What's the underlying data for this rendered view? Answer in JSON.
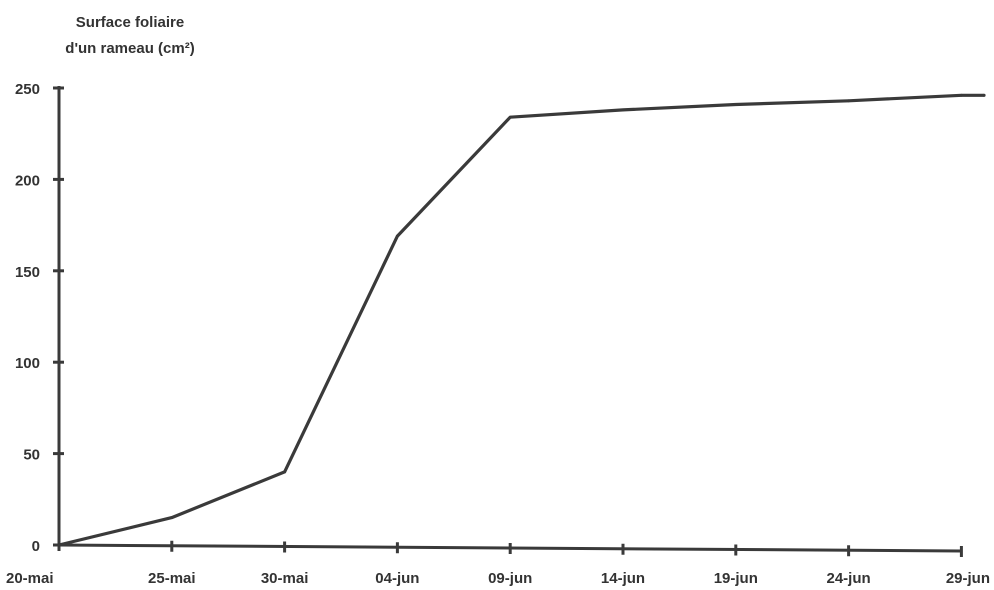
{
  "chart_data": {
    "type": "line",
    "title": "",
    "ylabel_lines": [
      "Surface foliaire",
      "d'un rameau (cm²)"
    ],
    "xlabel": "",
    "x": [
      "20-mai",
      "25-mai",
      "30-mai",
      "04-jun",
      "09-jun",
      "14-jun",
      "19-jun",
      "24-jun",
      "29-jun"
    ],
    "series": [
      {
        "x": [
          "20-mai",
          "25-mai",
          "30-mai",
          "04-jun",
          "09-jun",
          "14-jun",
          "19-jun",
          "24-jun",
          "29-jun",
          "30-jun"
        ],
        "values": [
          0,
          15,
          40,
          169,
          234,
          238,
          241,
          243,
          246,
          246
        ]
      }
    ],
    "ylim": [
      0,
      250
    ],
    "yticks": [
      0,
      50,
      100,
      150,
      200,
      250
    ],
    "grid": false,
    "line_color": "#3a3a3a"
  }
}
